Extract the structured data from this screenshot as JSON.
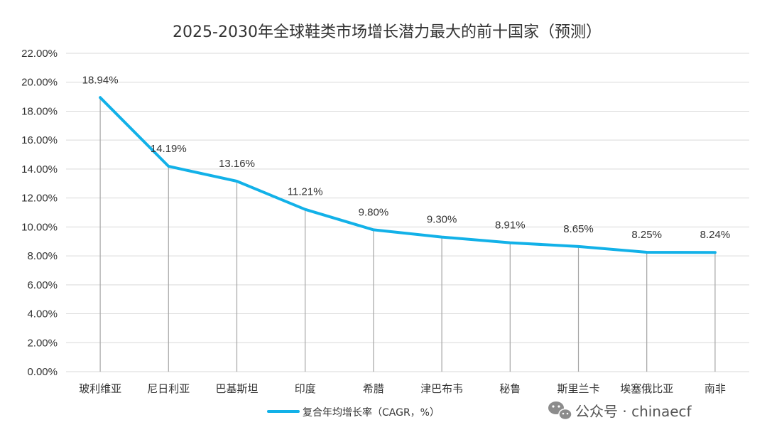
{
  "chart_data": {
    "type": "line",
    "title": "2025-2030年全球鞋类市场增长潜力最大的前十国家（预测）",
    "categories": [
      "玻利维亚",
      "尼日利亚",
      "巴基斯坦",
      "印度",
      "希腊",
      "津巴布韦",
      "秘鲁",
      "斯里兰卡",
      "埃塞俄比亚",
      "南非"
    ],
    "series": [
      {
        "name": "复合年均增长率（CAGR，%）",
        "values": [
          18.94,
          14.19,
          13.16,
          11.21,
          9.8,
          9.3,
          8.91,
          8.65,
          8.25,
          8.24
        ],
        "labels": [
          "18.94%",
          "14.19%",
          "13.16%",
          "11.21%",
          "9.80%",
          "9.30%",
          "8.91%",
          "8.65%",
          "8.25%",
          "8.24%"
        ],
        "color": "#12B1E8"
      }
    ],
    "ylim": [
      0,
      22
    ],
    "yticks": [
      "0.00%",
      "2.00%",
      "4.00%",
      "6.00%",
      "8.00%",
      "10.00%",
      "12.00%",
      "14.00%",
      "16.00%",
      "18.00%",
      "20.00%",
      "22.00%"
    ],
    "grid": true,
    "drop_lines": true,
    "legend_position": "bottom",
    "colors": {
      "line": "#12B1E8",
      "grid": "#D9D9D9",
      "drop_line": "#A6A6A6",
      "text": "#333333"
    }
  },
  "watermark": {
    "text": "公众号 · chinaecf",
    "icon": "wechat-icon"
  }
}
